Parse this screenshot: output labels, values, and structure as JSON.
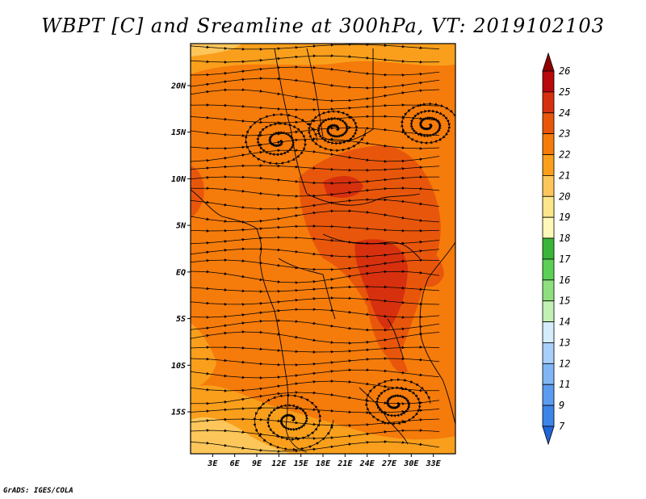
{
  "title": "WBPT [C] and Sreamline at 300hPa, VT: 2019102103",
  "credit": "GrADS: IGES/COLA",
  "map": {
    "lat_labels": [
      {
        "lat": 20,
        "text": "20N"
      },
      {
        "lat": 15,
        "text": "15N"
      },
      {
        "lat": 10,
        "text": "10N"
      },
      {
        "lat": 5,
        "text": "5N"
      },
      {
        "lat": 0,
        "text": "EQ"
      },
      {
        "lat": -5,
        "text": "5S"
      },
      {
        "lat": -10,
        "text": "10S"
      },
      {
        "lat": -15,
        "text": "15S"
      }
    ],
    "lon_labels": [
      {
        "lon": 3,
        "text": "3E"
      },
      {
        "lon": 6,
        "text": "6E"
      },
      {
        "lon": 9,
        "text": "9E"
      },
      {
        "lon": 12,
        "text": "12E"
      },
      {
        "lon": 15,
        "text": "15E"
      },
      {
        "lon": 18,
        "text": "18E"
      },
      {
        "lon": 21,
        "text": "21E"
      },
      {
        "lon": 24,
        "text": "24E"
      },
      {
        "lon": 27,
        "text": "27E"
      },
      {
        "lon": 30,
        "text": "30E"
      },
      {
        "lon": 33,
        "text": "33E"
      }
    ],
    "lon_range": [
      0,
      36
    ],
    "lat_range": [
      -19.5,
      24.5
    ]
  },
  "colorbar": {
    "levels": [
      "7",
      "9",
      "11",
      "12",
      "13",
      "14",
      "15",
      "16",
      "17",
      "18",
      "19",
      "20",
      "21",
      "22",
      "23",
      "24",
      "25",
      "26"
    ],
    "colors": [
      "#2166d8",
      "#3d84e8",
      "#5b9cf0",
      "#80b6f5",
      "#a8cff9",
      "#d4ecfc",
      "#c2f0b4",
      "#8fdf7e",
      "#5ccf55",
      "#39b53a",
      "#fff8b8",
      "#fde58a",
      "#fcc65a",
      "#f99f1c",
      "#f57b0b",
      "#e8560b",
      "#d7300e",
      "#b8080c",
      "#900000"
    ]
  },
  "field_colors": {
    "c20": "#fcc65a",
    "c21": "#f99f1c",
    "c22": "#f57b0b",
    "c23": "#e8560b",
    "c24": "#d7300e"
  }
}
